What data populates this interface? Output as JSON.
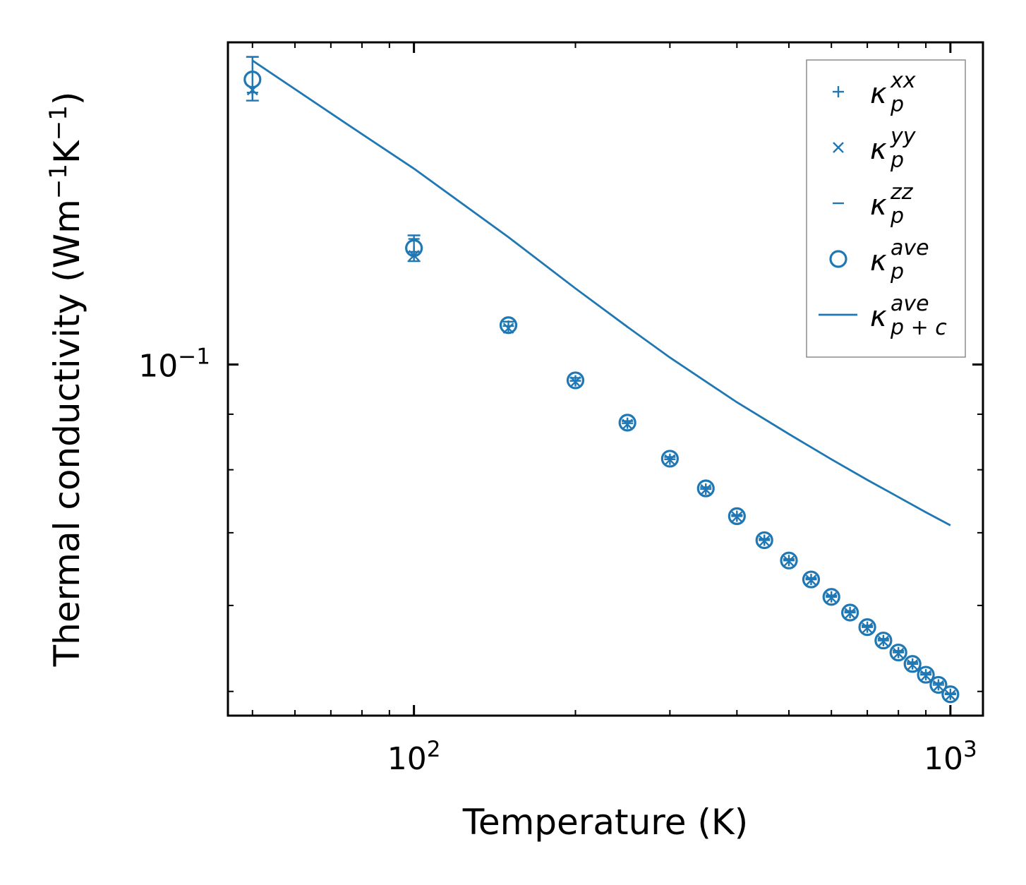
{
  "chart_data": {
    "type": "scatter",
    "title": "",
    "xlabel": "Temperature (K)",
    "ylabel": "Thermal conductivity (Wm$^{-1}$K$^{-1}$)",
    "ylabel_parts": {
      "prefix": "Thermal conductivity (Wm",
      "exp1": "−1",
      "mid": "K",
      "exp2": "−1",
      "suffix": ")"
    },
    "x_scale": "log",
    "y_scale": "log",
    "xlim": [
      45,
      1150
    ],
    "ylim": [
      0.0475,
      0.198
    ],
    "x_ticks": [
      {
        "value": 100,
        "base": "10",
        "exp": "2"
      },
      {
        "value": 1000,
        "base": "10",
        "exp": "3"
      }
    ],
    "y_ticks": [
      {
        "value": 0.1,
        "base": "10",
        "exp": "−1"
      }
    ],
    "color": "#1f77b4",
    "legend_position": "top-right",
    "legend": [
      {
        "marker": "plus",
        "symbol": "κ",
        "sub": "p",
        "sup": "xx"
      },
      {
        "marker": "x",
        "symbol": "κ",
        "sub": "p",
        "sup": "yy"
      },
      {
        "marker": "hline",
        "symbol": "κ",
        "sub": "p",
        "sup": "zz"
      },
      {
        "marker": "circle",
        "symbol": "κ",
        "sub": "p",
        "sup": "ave"
      },
      {
        "marker": "line",
        "symbol": "κ",
        "sub": "p + c",
        "sup": "ave"
      }
    ],
    "series": [
      {
        "name": "κ_p^xx",
        "marker": "plus",
        "x": [
          50,
          100,
          150,
          200,
          250,
          300,
          350,
          400,
          450,
          500,
          550,
          600,
          650,
          700,
          750,
          800,
          850,
          900,
          950,
          1000
        ],
        "y": [
          0.178,
          0.127,
          0.1085,
          0.0966,
          0.0883,
          0.0818,
          0.0768,
          0.0725,
          0.0689,
          0.066,
          0.0634,
          0.0611,
          0.0591,
          0.0573,
          0.0557,
          0.0543,
          0.053,
          0.0518,
          0.0507,
          0.0497
        ]
      },
      {
        "name": "κ_p^yy",
        "marker": "x",
        "x": [
          50,
          100,
          150,
          200,
          250,
          300,
          350,
          400,
          450,
          500,
          550,
          600,
          650,
          700,
          750,
          800,
          850,
          900,
          950,
          1000
        ],
        "y": [
          0.179,
          0.126,
          0.108,
          0.0964,
          0.0881,
          0.0817,
          0.0767,
          0.0724,
          0.0688,
          0.0659,
          0.0633,
          0.061,
          0.059,
          0.0572,
          0.0556,
          0.0542,
          0.0529,
          0.0517,
          0.0506,
          0.0496
        ]
      },
      {
        "name": "κ_p^zz",
        "marker": "hline",
        "x": [
          50,
          100,
          150,
          200,
          250,
          300,
          350,
          400,
          450,
          500,
          550,
          600,
          650,
          700,
          750,
          800,
          850,
          900,
          950,
          1000
        ],
        "y": [
          0.192,
          0.1305,
          0.1095,
          0.0972,
          0.0887,
          0.0822,
          0.0771,
          0.0727,
          0.0691,
          0.0662,
          0.0636,
          0.0613,
          0.0593,
          0.0575,
          0.0559,
          0.0545,
          0.0532,
          0.052,
          0.0509,
          0.0498
        ]
      },
      {
        "name": "κ_p^ave",
        "marker": "circle",
        "x": [
          50,
          100,
          150,
          200,
          250,
          300,
          350,
          400,
          450,
          500,
          550,
          600,
          650,
          700,
          750,
          800,
          850,
          900,
          950,
          1000
        ],
        "y": [
          0.183,
          0.128,
          0.1087,
          0.0967,
          0.0884,
          0.0819,
          0.0769,
          0.0725,
          0.0689,
          0.066,
          0.0634,
          0.0611,
          0.0591,
          0.0573,
          0.0557,
          0.0543,
          0.053,
          0.0518,
          0.0507,
          0.0497
        ]
      },
      {
        "name": "κ_{p+c}^ave",
        "marker": "line",
        "x": [
          50,
          75,
          100,
          150,
          200,
          250,
          300,
          400,
          500,
          600,
          700,
          800,
          900,
          1000
        ],
        "y": [
          0.1905,
          0.1665,
          0.1515,
          0.131,
          0.1175,
          0.1083,
          0.1015,
          0.0923,
          0.0863,
          0.0818,
          0.0783,
          0.0755,
          0.0731,
          0.0711
        ]
      }
    ]
  }
}
